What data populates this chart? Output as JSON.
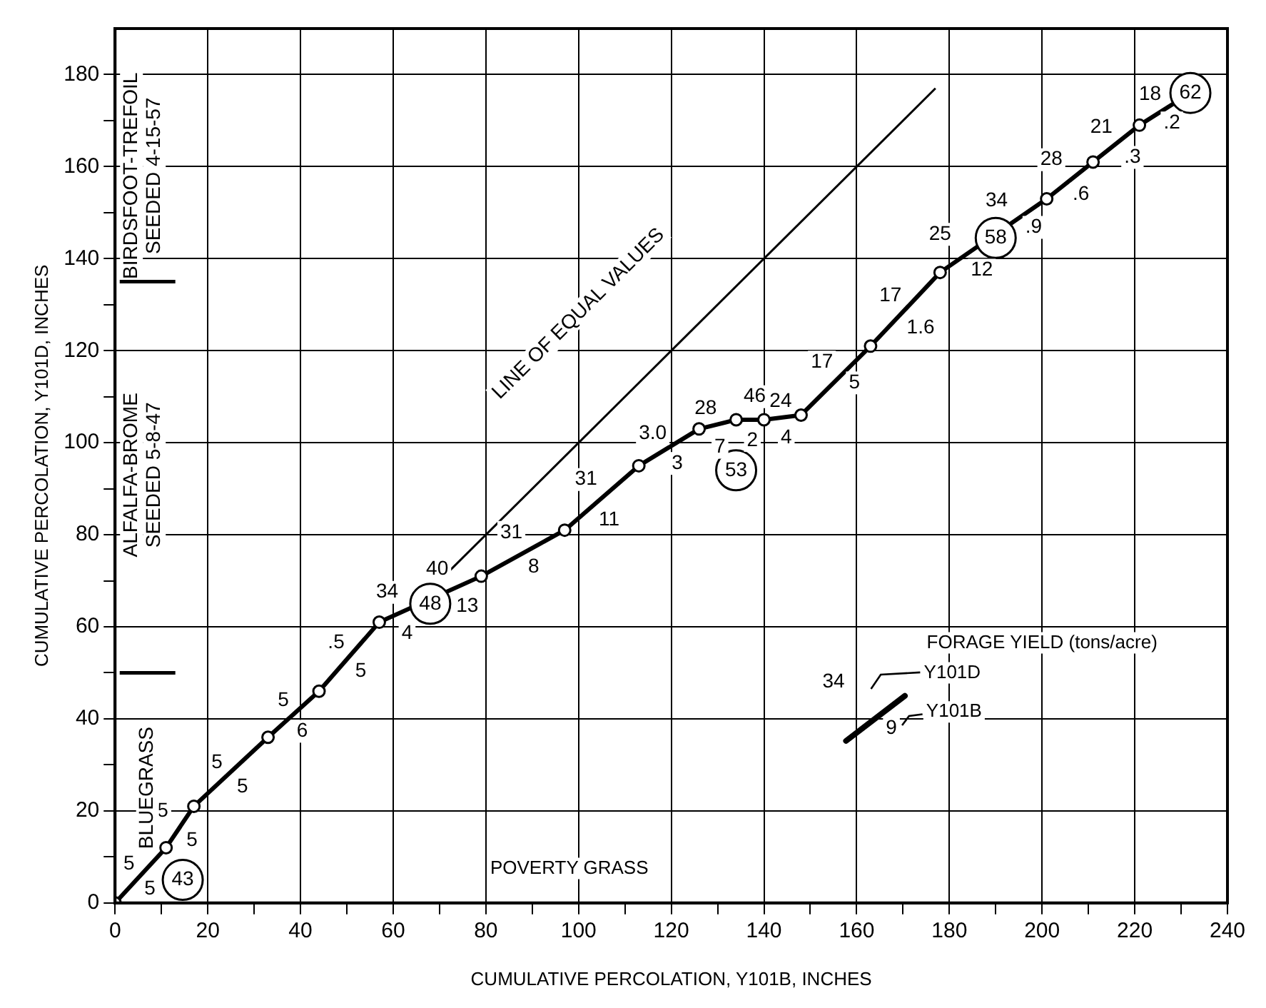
{
  "chart_data": {
    "type": "line",
    "xlabel": "CUMULATIVE PERCOLATION, Y101B, INCHES",
    "ylabel": "CUMULATIVE PERCOLATION, Y101D, INCHES",
    "series": [
      {
        "color": "#000000",
        "x": [
          0,
          11,
          17,
          33,
          44,
          57,
          79,
          97,
          113,
          126,
          134,
          140,
          148,
          163,
          178,
          201,
          211,
          221,
          232
        ],
        "values": [
          0,
          12,
          21,
          36,
          46,
          61,
          71,
          81,
          95,
          103,
          105,
          105,
          106,
          121,
          137,
          153,
          161,
          169,
          176
        ]
      },
      {
        "type": "line",
        "color": "#000000",
        "marker": "none",
        "x": [
          72,
          177
        ],
        "values": [
          72,
          177
        ]
      }
    ],
    "xlim": [
      0,
      240
    ],
    "ylim": [
      0,
      190
    ],
    "xticks": [
      0,
      {
        "value": 10,
        "label": null
      },
      20,
      {
        "value": 30,
        "label": null
      },
      40,
      {
        "value": 50,
        "label": null
      },
      60,
      {
        "value": 70,
        "label": null
      },
      80,
      {
        "value": 90,
        "label": null
      },
      100,
      {
        "value": 110,
        "label": null
      },
      120,
      {
        "value": 130,
        "label": null
      },
      140,
      {
        "value": 150,
        "label": null
      },
      160,
      {
        "value": 170,
        "label": null
      },
      180,
      {
        "value": 190,
        "label": null
      },
      200,
      {
        "value": 210,
        "label": null
      },
      220,
      {
        "value": 230,
        "label": null
      },
      240
    ],
    "yticks": [
      0,
      {
        "value": 10,
        "label": null
      },
      20,
      {
        "value": 30,
        "label": null
      },
      40,
      {
        "value": 50,
        "label": null
      },
      60,
      {
        "value": 70,
        "label": null
      },
      80,
      {
        "value": 90,
        "label": null
      },
      100,
      {
        "value": 110,
        "label": null
      },
      120,
      {
        "value": 130,
        "label": null
      },
      140,
      {
        "value": 150,
        "label": null
      },
      160,
      {
        "value": 170,
        "label": null
      },
      180
    ],
    "grid": true,
    "marker": "circle",
    "line_style": "solid",
    "annotations": [
      {
        "text": "43",
        "x": 14.6,
        "y": 5
      },
      {
        "text": "48",
        "x": 68,
        "y": 65
      },
      {
        "text": "53",
        "x": 134,
        "y": 94
      },
      {
        "text": "58",
        "x": 190,
        "y": 144.5
      },
      {
        "text": "62",
        "x": 232,
        "y": 176
      },
      "LINE OF EQUAL VALUES",
      "POVERTY GRASS",
      "5",
      "5",
      "5",
      "5",
      "5",
      "5",
      "5",
      "6",
      ".5",
      "5",
      "34",
      "4",
      "40",
      "13",
      "31",
      "8",
      "31",
      "11",
      "3.0",
      "3",
      "28",
      "7",
      "46",
      "2",
      "24",
      "4",
      "17",
      "5",
      "17",
      "1.6",
      "25",
      "12",
      "34",
      ".9",
      "28",
      ".6",
      "21",
      ".3",
      "18",
      ".2",
      "BLUEGRASS",
      "ALFALFA-BROME\nSEEDED 5-8-47",
      "BIRDSFOOT-TREFOIL\nSEEDED 4-15-57",
      "FORAGE YIELD (tons/acre)",
      "Y101D",
      "Y101B",
      "34",
      "9"
    ]
  }
}
